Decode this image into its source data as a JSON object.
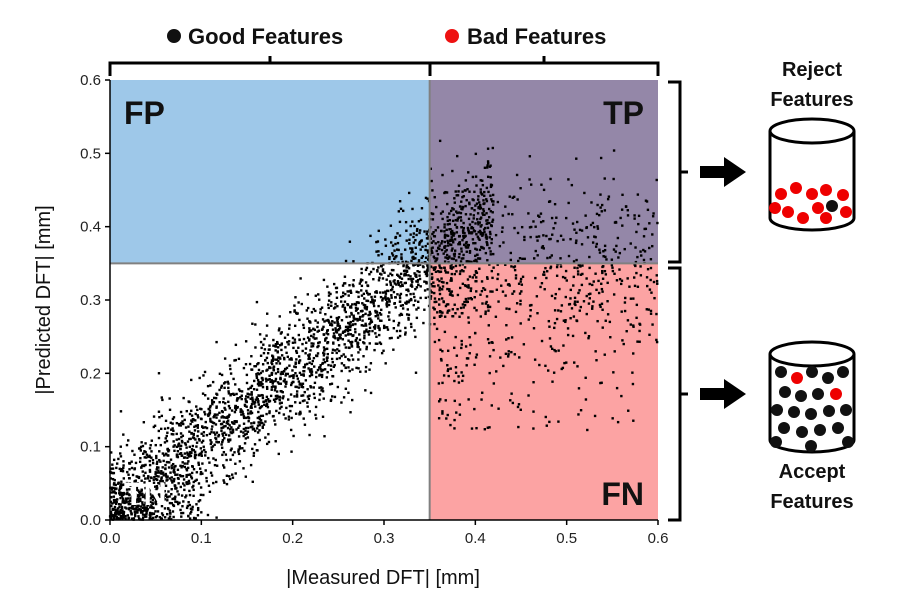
{
  "chart_data": {
    "type": "scatter",
    "xlabel": "|Measured DFT| [mm]",
    "ylabel": "|Predicted DFT| [mm]",
    "xlim": [
      0,
      0.6
    ],
    "ylim": [
      0,
      0.6
    ],
    "x_ticks": [
      "0.0",
      "0.1",
      "0.2",
      "0.3",
      "0.4",
      "0.5",
      "0.6"
    ],
    "y_ticks": [
      "0.0",
      "0.1",
      "0.2",
      "0.3",
      "0.4",
      "0.5",
      "0.6"
    ],
    "grid": false,
    "threshold_x": 0.35,
    "threshold_y": 0.35,
    "quadrants": [
      {
        "label": "FP",
        "x_range": [
          0,
          0.35
        ],
        "y_range": [
          0.35,
          0.6
        ],
        "color": "#9ec8e9"
      },
      {
        "label": "TP",
        "x_range": [
          0.35,
          0.6
        ],
        "y_range": [
          0.35,
          0.6
        ],
        "color": "#9487a8"
      },
      {
        "label": "TN",
        "x_range": [
          0,
          0.35
        ],
        "y_range": [
          0,
          0.35
        ],
        "color": "#ffffff"
      },
      {
        "label": "FN",
        "x_range": [
          0.35,
          0.6
        ],
        "y_range": [
          0,
          0.35
        ],
        "color": "#fca3a3"
      }
    ],
    "point_color": "#000000",
    "cloud": {
      "trend": "approximately y = x",
      "x_range": [
        0.0,
        0.6
      ],
      "y_range": [
        0.0,
        0.52
      ]
    }
  },
  "legend": {
    "good": {
      "label": "Good Features",
      "color": "#111111"
    },
    "bad": {
      "label": "Bad Features",
      "color": "#ee1111"
    }
  },
  "bins": {
    "reject": {
      "line1": "Reject",
      "line2": "Features"
    },
    "accept": {
      "line1": "Accept",
      "line2": "Features"
    }
  }
}
